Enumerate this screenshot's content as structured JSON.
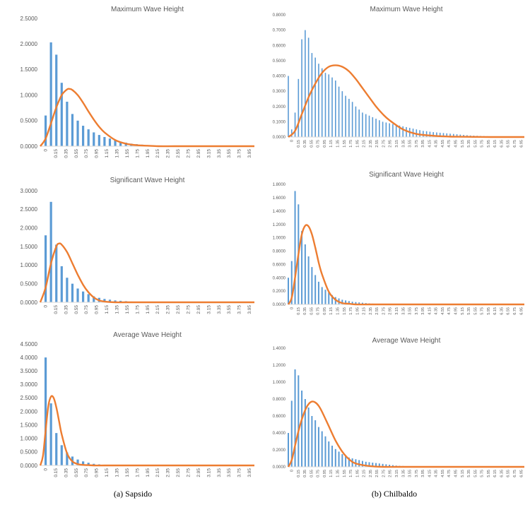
{
  "captions": {
    "left": "(a) Sapsido",
    "right": "(b) Chilbaldo"
  },
  "colors": {
    "bars": "#5b9bd5",
    "curve": "#ed7d31",
    "axis": "#d9d9d9",
    "text": "#595959"
  },
  "chart_data": [
    {
      "type": "bar",
      "title": "Maximum Wave Height",
      "xlabel": "",
      "ylabel": "",
      "ylim": [
        0,
        2.5
      ],
      "yticks": [
        "0.0000",
        "0.5000",
        "1.0000",
        "1.5000",
        "2.0000",
        "2.5000"
      ],
      "xlim": [
        0,
        4.0
      ],
      "xticks": [
        "0",
        "0.15",
        "0.35",
        "0.55",
        "0.75",
        "0.95",
        "1.15",
        "1.35",
        "1.55",
        "1.75",
        "1.95",
        "2.15",
        "2.35",
        "2.55",
        "2.75",
        "2.95",
        "3.15",
        "3.35",
        "3.55",
        "3.75",
        "3.95"
      ],
      "grid": false,
      "series": [
        {
          "kind": "bar",
          "x": [
            0.1,
            0.2,
            0.3,
            0.4,
            0.5,
            0.6,
            0.7,
            0.8,
            0.9,
            1.0,
            1.1,
            1.2,
            1.3,
            1.4,
            1.5,
            1.6,
            1.7,
            1.8,
            1.9,
            2.0,
            2.1,
            2.2,
            2.3,
            2.4,
            2.5
          ],
          "values": [
            0.6,
            2.03,
            1.79,
            1.24,
            0.87,
            0.63,
            0.5,
            0.4,
            0.33,
            0.27,
            0.22,
            0.18,
            0.15,
            0.12,
            0.09,
            0.07,
            0.05,
            0.04,
            0.03,
            0.02,
            0.02,
            0.01,
            0.01,
            0.01,
            0.01
          ]
        },
        {
          "kind": "line",
          "x": [
            0.0,
            0.1,
            0.2,
            0.3,
            0.4,
            0.5,
            0.55,
            0.6,
            0.7,
            0.8,
            0.9,
            1.0,
            1.1,
            1.2,
            1.4,
            1.6,
            1.8,
            2.0,
            2.2,
            2.5,
            3.0,
            3.5,
            4.0
          ],
          "values": [
            0.0,
            0.15,
            0.45,
            0.76,
            1.0,
            1.11,
            1.12,
            1.1,
            1.0,
            0.85,
            0.68,
            0.52,
            0.38,
            0.27,
            0.12,
            0.05,
            0.02,
            0.01,
            0.0,
            0.0,
            0.0,
            0.0,
            0.0
          ]
        }
      ]
    },
    {
      "type": "bar",
      "title": "Maximum Wave Height",
      "xlabel": "",
      "ylabel": "",
      "ylim": [
        0,
        0.8
      ],
      "yticks": [
        "0.0000",
        "0.1000",
        "0.2000",
        "0.3000",
        "0.4000",
        "0.5000",
        "0.6000",
        "0.7000",
        "0.8000"
      ],
      "xlim": [
        0,
        7.0
      ],
      "xticks": [
        "0",
        "0.15",
        "0.35",
        "0.55",
        "0.75",
        "0.95",
        "1.15",
        "1.35",
        "1.55",
        "1.75",
        "1.95",
        "2.15",
        "2.35",
        "2.55",
        "2.75",
        "2.95",
        "3.15",
        "3.35",
        "3.55",
        "3.75",
        "3.95",
        "4.15",
        "4.35",
        "4.55",
        "4.75",
        "4.95",
        "5.15",
        "5.35",
        "5.55",
        "5.75",
        "5.95",
        "6.15",
        "6.35",
        "6.55",
        "6.75",
        "6.95"
      ],
      "grid": false,
      "series": [
        {
          "kind": "bar",
          "x": [
            0.0,
            0.1,
            0.2,
            0.3,
            0.4,
            0.5,
            0.6,
            0.7,
            0.8,
            0.9,
            1.0,
            1.1,
            1.2,
            1.3,
            1.4,
            1.5,
            1.6,
            1.7,
            1.8,
            1.9,
            2.0,
            2.1,
            2.2,
            2.3,
            2.4,
            2.5,
            2.6,
            2.7,
            2.8,
            2.9,
            3.0,
            3.1,
            3.2,
            3.3,
            3.4,
            3.5,
            3.6,
            3.7,
            3.8,
            3.9,
            4.0,
            4.1,
            4.2,
            4.3,
            4.4,
            4.5,
            4.6,
            4.7,
            4.8,
            4.9,
            5.0,
            5.1,
            5.2,
            5.3,
            5.4,
            5.5,
            5.6,
            5.7,
            5.8,
            5.9,
            6.0
          ],
          "values": [
            0.4,
            0.05,
            0.16,
            0.38,
            0.64,
            0.7,
            0.65,
            0.55,
            0.52,
            0.48,
            0.45,
            0.42,
            0.41,
            0.39,
            0.37,
            0.33,
            0.3,
            0.27,
            0.25,
            0.23,
            0.2,
            0.18,
            0.16,
            0.15,
            0.14,
            0.13,
            0.12,
            0.11,
            0.1,
            0.095,
            0.09,
            0.085,
            0.08,
            0.075,
            0.07,
            0.065,
            0.06,
            0.055,
            0.05,
            0.045,
            0.04,
            0.038,
            0.035,
            0.032,
            0.03,
            0.028,
            0.026,
            0.024,
            0.022,
            0.02,
            0.018,
            0.016,
            0.014,
            0.012,
            0.01,
            0.009,
            0.008,
            0.007,
            0.006,
            0.005,
            0.004
          ]
        },
        {
          "kind": "line",
          "x": [
            0.0,
            0.2,
            0.4,
            0.6,
            0.8,
            1.0,
            1.2,
            1.4,
            1.6,
            1.8,
            2.0,
            2.2,
            2.4,
            2.6,
            2.8,
            3.0,
            3.4,
            3.8,
            4.2,
            4.6,
            5.0,
            5.5,
            6.0,
            7.0
          ],
          "values": [
            0.0,
            0.04,
            0.15,
            0.26,
            0.35,
            0.42,
            0.46,
            0.47,
            0.46,
            0.43,
            0.38,
            0.32,
            0.26,
            0.2,
            0.15,
            0.11,
            0.05,
            0.02,
            0.01,
            0.004,
            0.002,
            0.001,
            0.0,
            0.0
          ]
        }
      ]
    },
    {
      "type": "bar",
      "title": "Significant Wave Height",
      "xlabel": "",
      "ylabel": "",
      "ylim": [
        0,
        3.0
      ],
      "yticks": [
        "0.0000",
        "0.5000",
        "1.0000",
        "1.5000",
        "2.0000",
        "2.5000",
        "3.0000"
      ],
      "xlim": [
        0,
        4.0
      ],
      "xticks": [
        "0",
        "0.15",
        "0.35",
        "0.55",
        "0.75",
        "0.95",
        "1.15",
        "1.35",
        "1.55",
        "1.75",
        "1.95",
        "2.15",
        "2.35",
        "2.55",
        "2.75",
        "2.95",
        "3.15",
        "3.35",
        "3.55",
        "3.75",
        "3.95"
      ],
      "grid": false,
      "series": [
        {
          "kind": "bar",
          "x": [
            0.1,
            0.2,
            0.3,
            0.4,
            0.5,
            0.6,
            0.7,
            0.8,
            0.9,
            1.0,
            1.1,
            1.2,
            1.3,
            1.4,
            1.5,
            1.6,
            1.7
          ],
          "values": [
            1.8,
            2.7,
            1.55,
            0.97,
            0.66,
            0.5,
            0.37,
            0.29,
            0.22,
            0.16,
            0.12,
            0.09,
            0.07,
            0.05,
            0.04,
            0.03,
            0.02
          ]
        },
        {
          "kind": "line",
          "x": [
            0.0,
            0.1,
            0.2,
            0.3,
            0.35,
            0.4,
            0.5,
            0.6,
            0.7,
            0.8,
            0.9,
            1.0,
            1.1,
            1.2,
            1.4,
            1.6,
            2.0,
            3.0,
            4.0
          ],
          "values": [
            0.0,
            0.4,
            1.05,
            1.5,
            1.58,
            1.55,
            1.35,
            1.05,
            0.74,
            0.47,
            0.27,
            0.13,
            0.05,
            0.02,
            0.0,
            0.0,
            0.0,
            0.0,
            0.0
          ]
        }
      ]
    },
    {
      "type": "bar",
      "title": "Significant Wave Height",
      "xlabel": "",
      "ylabel": "",
      "ylim": [
        0,
        1.8
      ],
      "yticks": [
        "0.0000",
        "0.2000",
        "0.4000",
        "0.6000",
        "0.8000",
        "1.0000",
        "1.2000",
        "1.4000",
        "1.6000",
        "1.8000"
      ],
      "xlim": [
        0,
        7.0
      ],
      "xticks": [
        "0",
        "0.15",
        "0.35",
        "0.55",
        "0.75",
        "0.95",
        "1.15",
        "1.35",
        "1.55",
        "1.75",
        "1.95",
        "2.15",
        "2.35",
        "2.55",
        "2.75",
        "2.95",
        "3.15",
        "3.35",
        "3.55",
        "3.75",
        "3.95",
        "4.15",
        "4.35",
        "4.55",
        "4.75",
        "4.95",
        "5.15",
        "5.35",
        "5.55",
        "5.75",
        "5.95",
        "6.15",
        "6.35",
        "6.55",
        "6.75",
        "6.95"
      ],
      "grid": false,
      "series": [
        {
          "kind": "bar",
          "x": [
            0.0,
            0.1,
            0.2,
            0.3,
            0.4,
            0.5,
            0.6,
            0.7,
            0.8,
            0.9,
            1.0,
            1.1,
            1.2,
            1.3,
            1.4,
            1.5,
            1.6,
            1.7,
            1.8,
            1.9,
            2.0,
            2.1,
            2.2,
            2.3,
            2.4,
            2.5,
            2.6,
            2.7,
            2.8
          ],
          "values": [
            0.4,
            0.65,
            1.7,
            1.5,
            1.1,
            0.9,
            0.72,
            0.56,
            0.44,
            0.34,
            0.26,
            0.22,
            0.18,
            0.14,
            0.11,
            0.09,
            0.07,
            0.06,
            0.05,
            0.04,
            0.035,
            0.03,
            0.025,
            0.02,
            0.015,
            0.012,
            0.01,
            0.008,
            0.006
          ]
        },
        {
          "kind": "line",
          "x": [
            0.0,
            0.1,
            0.2,
            0.3,
            0.4,
            0.5,
            0.6,
            0.7,
            0.8,
            0.9,
            1.0,
            1.2,
            1.4,
            1.6,
            1.8,
            2.0,
            2.4,
            3.0,
            4.0,
            7.0
          ],
          "values": [
            0.0,
            0.1,
            0.4,
            0.75,
            1.05,
            1.18,
            1.17,
            1.05,
            0.85,
            0.63,
            0.45,
            0.19,
            0.07,
            0.02,
            0.01,
            0.0,
            0.0,
            0.0,
            0.0,
            0.0
          ]
        }
      ]
    },
    {
      "type": "bar",
      "title": "Average Wave Height",
      "xlabel": "",
      "ylabel": "",
      "ylim": [
        0,
        4.5
      ],
      "yticks": [
        "0.0000",
        "0.5000",
        "1.0000",
        "1.5000",
        "2.0000",
        "2.5000",
        "3.0000",
        "3.5000",
        "4.0000",
        "4.5000"
      ],
      "xlim": [
        0,
        4.0
      ],
      "xticks": [
        "0",
        "0.15",
        "0.35",
        "0.55",
        "0.75",
        "0.95",
        "1.15",
        "1.35",
        "1.55",
        "1.75",
        "1.95",
        "2.15",
        "2.35",
        "2.55",
        "2.75",
        "2.95",
        "3.15",
        "3.35",
        "3.55",
        "3.75",
        "3.95"
      ],
      "grid": false,
      "series": [
        {
          "kind": "bar",
          "x": [
            0.1,
            0.2,
            0.3,
            0.4,
            0.5,
            0.6,
            0.7,
            0.8,
            0.9,
            1.0,
            1.1
          ],
          "values": [
            4.0,
            2.3,
            1.2,
            0.75,
            0.48,
            0.33,
            0.22,
            0.15,
            0.1,
            0.06,
            0.04
          ]
        },
        {
          "kind": "line",
          "x": [
            0.0,
            0.05,
            0.1,
            0.15,
            0.2,
            0.25,
            0.3,
            0.35,
            0.4,
            0.5,
            0.6,
            0.7,
            0.8,
            0.9,
            1.0,
            1.2,
            1.5,
            2.0,
            3.0,
            4.0
          ],
          "values": [
            0.0,
            0.35,
            1.3,
            2.2,
            2.55,
            2.5,
            2.15,
            1.65,
            1.15,
            0.45,
            0.15,
            0.05,
            0.02,
            0.01,
            0.0,
            0.0,
            0.0,
            0.0,
            0.0,
            0.0
          ]
        }
      ]
    },
    {
      "type": "bar",
      "title": "Average Wave Height",
      "xlabel": "",
      "ylabel": "",
      "ylim": [
        0,
        1.4
      ],
      "yticks": [
        "0.0000",
        "0.2000",
        "0.4000",
        "0.6000",
        "0.8000",
        "1.0000",
        "1.2000",
        "1.4000"
      ],
      "xlim": [
        0,
        7.0
      ],
      "xticks": [
        "0",
        "0.15",
        "0.35",
        "0.55",
        "0.75",
        "0.95",
        "1.15",
        "1.35",
        "1.55",
        "1.75",
        "1.95",
        "2.15",
        "2.35",
        "2.55",
        "2.75",
        "2.95",
        "3.15",
        "3.35",
        "3.55",
        "3.75",
        "3.95",
        "4.15",
        "4.35",
        "4.55",
        "4.75",
        "4.95",
        "5.15",
        "5.35",
        "5.55",
        "5.75",
        "5.95",
        "6.15",
        "6.35",
        "6.55",
        "6.75",
        "6.95"
      ],
      "grid": false,
      "series": [
        {
          "kind": "bar",
          "x": [
            0.0,
            0.1,
            0.2,
            0.3,
            0.4,
            0.5,
            0.6,
            0.7,
            0.8,
            0.9,
            1.0,
            1.1,
            1.2,
            1.3,
            1.4,
            1.5,
            1.6,
            1.7,
            1.8,
            1.9,
            2.0,
            2.1,
            2.2,
            2.3,
            2.4,
            2.5,
            2.6,
            2.7,
            2.8,
            2.9,
            3.0,
            3.1,
            3.2,
            3.3,
            3.4,
            3.5,
            3.6,
            3.7,
            3.8
          ],
          "values": [
            0.4,
            0.78,
            1.15,
            1.08,
            0.9,
            0.8,
            0.7,
            0.6,
            0.55,
            0.47,
            0.42,
            0.36,
            0.3,
            0.25,
            0.21,
            0.18,
            0.15,
            0.13,
            0.11,
            0.1,
            0.09,
            0.08,
            0.07,
            0.06,
            0.055,
            0.05,
            0.045,
            0.04,
            0.035,
            0.03,
            0.025,
            0.02,
            0.015,
            0.012,
            0.01,
            0.008,
            0.006,
            0.005,
            0.004
          ]
        },
        {
          "kind": "line",
          "x": [
            0.0,
            0.1,
            0.2,
            0.3,
            0.4,
            0.5,
            0.6,
            0.7,
            0.8,
            0.9,
            1.0,
            1.2,
            1.4,
            1.6,
            1.8,
            2.0,
            2.4,
            2.8,
            3.2,
            4.0,
            7.0
          ],
          "values": [
            0.0,
            0.08,
            0.25,
            0.42,
            0.56,
            0.67,
            0.74,
            0.77,
            0.76,
            0.72,
            0.65,
            0.48,
            0.31,
            0.18,
            0.09,
            0.04,
            0.01,
            0.0,
            0.0,
            0.0,
            0.0
          ]
        }
      ]
    }
  ]
}
